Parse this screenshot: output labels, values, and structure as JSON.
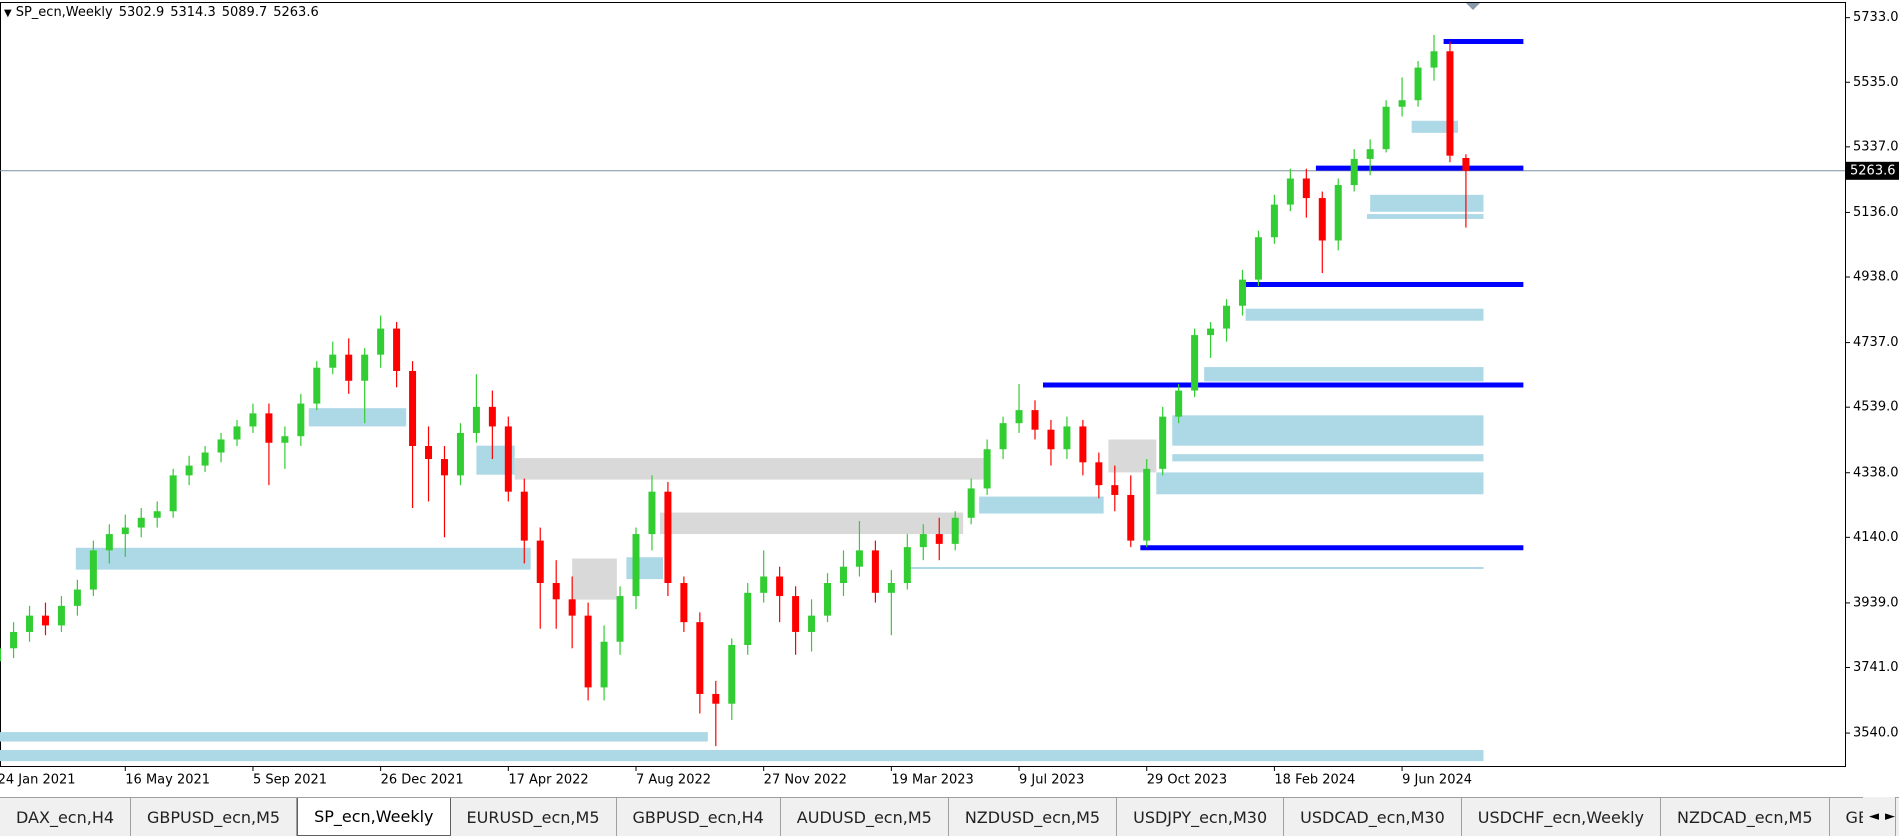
{
  "chart_data": {
    "type": "candlestick",
    "title": "SP_ecn,Weekly",
    "up_color": "#32cd32",
    "down_color": "#ff0000",
    "categories": [
      "24 Jan 2021",
      null,
      null,
      null,
      null,
      null,
      null,
      null,
      "16 May 2021",
      null,
      null,
      null,
      null,
      null,
      null,
      null,
      "5 Sep 2021",
      null,
      null,
      null,
      null,
      null,
      null,
      null,
      "26 Dec 2021",
      null,
      null,
      null,
      null,
      null,
      null,
      null,
      "17 Apr 2022",
      null,
      null,
      null,
      null,
      null,
      null,
      null,
      "7 Aug 2022",
      null,
      null,
      null,
      null,
      null,
      null,
      null,
      "27 Nov 2022",
      null,
      null,
      null,
      null,
      null,
      null,
      null,
      "19 Mar 2023",
      null,
      null,
      null,
      null,
      null,
      null,
      null,
      "9 Jul 2023",
      null,
      null,
      null,
      null,
      null,
      null,
      null,
      "29 Oct 2023",
      null,
      null,
      null,
      null,
      null,
      null,
      null,
      "18 Feb 2024",
      null,
      null,
      null,
      null,
      null,
      null,
      null,
      "9 Jun 2024",
      null,
      null,
      null,
      null
    ],
    "open": [
      3760,
      3800,
      3850,
      3900,
      3870,
      3930,
      3980,
      4100,
      4150,
      4170,
      4200,
      4220,
      4330,
      4360,
      4400,
      4440,
      4480,
      4520,
      4430,
      4450,
      4550,
      4660,
      4700,
      4620,
      4700,
      4780,
      4650,
      4420,
      4380,
      4330,
      4460,
      4540,
      4480,
      4280,
      4130,
      4000,
      3950,
      3900,
      3680,
      3820,
      3960,
      4150,
      4280,
      4000,
      3880,
      3660,
      3630,
      3810,
      3970,
      4020,
      3960,
      3850,
      3900,
      4000,
      4050,
      4100,
      3970,
      4000,
      4110,
      4150,
      4120,
      4200,
      4290,
      4410,
      4490,
      4530,
      4470,
      4410,
      4480,
      4370,
      4300,
      4270,
      4130,
      4350,
      4510,
      4590,
      4760,
      4780,
      4850,
      4930,
      5060,
      5160,
      5240,
      5180,
      5050,
      5220,
      5300,
      5330,
      5460,
      5480,
      5580,
      5630,
      5302.9
    ],
    "high": [
      3840,
      3880,
      3930,
      3940,
      3960,
      4010,
      4130,
      4180,
      4210,
      4230,
      4250,
      4350,
      4390,
      4420,
      4460,
      4500,
      4550,
      4550,
      4480,
      4580,
      4680,
      4740,
      4750,
      4720,
      4820,
      4800,
      4680,
      4480,
      4420,
      4490,
      4640,
      4590,
      4510,
      4320,
      4170,
      4070,
      4020,
      3940,
      3870,
      3990,
      4170,
      4330,
      4310,
      4020,
      3910,
      3700,
      3830,
      4000,
      4100,
      4050,
      3990,
      3950,
      4030,
      4100,
      4190,
      4130,
      4040,
      4150,
      4180,
      4200,
      4220,
      4320,
      4440,
      4510,
      4610,
      4560,
      4500,
      4510,
      4500,
      4400,
      4360,
      4330,
      4380,
      4540,
      4610,
      4780,
      4800,
      4870,
      4960,
      5080,
      5190,
      5270,
      5270,
      5200,
      5240,
      5330,
      5360,
      5480,
      5550,
      5600,
      5680,
      5660,
      5314.3
    ],
    "low": [
      3720,
      3770,
      3820,
      3840,
      3850,
      3900,
      3960,
      4060,
      4080,
      4140,
      4170,
      4200,
      4300,
      4340,
      4370,
      4420,
      4460,
      4300,
      4350,
      4420,
      4530,
      4640,
      4580,
      4490,
      4660,
      4600,
      4230,
      4250,
      4140,
      4300,
      4430,
      4380,
      4250,
      4060,
      3860,
      3860,
      3800,
      3640,
      3640,
      3780,
      3920,
      4100,
      3960,
      3850,
      3600,
      3500,
      3580,
      3780,
      3940,
      3880,
      3780,
      3790,
      3880,
      3960,
      4020,
      3940,
      3840,
      3980,
      4070,
      4070,
      4100,
      4180,
      4270,
      4380,
      4460,
      4440,
      4360,
      4380,
      4330,
      4260,
      4220,
      4110,
      4110,
      4330,
      4490,
      4570,
      4690,
      4740,
      4820,
      4910,
      5040,
      5140,
      5120,
      4950,
      5020,
      5200,
      5250,
      5320,
      5430,
      5460,
      5540,
      5290,
      5089.7
    ],
    "close": [
      3800,
      3850,
      3900,
      3870,
      3930,
      3980,
      4100,
      4150,
      4170,
      4200,
      4220,
      4330,
      4360,
      4400,
      4440,
      4480,
      4520,
      4430,
      4450,
      4550,
      4660,
      4700,
      4620,
      4700,
      4780,
      4650,
      4420,
      4380,
      4330,
      4460,
      4540,
      4480,
      4280,
      4130,
      4000,
      3950,
      3900,
      3680,
      3820,
      3960,
      4150,
      4280,
      4000,
      3880,
      3660,
      3630,
      3810,
      3970,
      4020,
      3960,
      3850,
      3900,
      4000,
      4050,
      4100,
      3970,
      4000,
      4110,
      4150,
      4120,
      4200,
      4290,
      4410,
      4490,
      4530,
      4470,
      4410,
      4480,
      4370,
      4300,
      4270,
      4130,
      4350,
      4510,
      4590,
      4760,
      4780,
      4850,
      4930,
      5060,
      5160,
      5240,
      5180,
      5050,
      5220,
      5300,
      5330,
      5460,
      5480,
      5580,
      5630,
      5310,
      5263.6
    ],
    "ylim": [
      3436,
      5778
    ],
    "yticks": [
      {
        "value": 3540,
        "label": "3540.0"
      },
      {
        "value": 3741,
        "label": "3741.0"
      },
      {
        "value": 3939,
        "label": "3939.0"
      },
      {
        "value": 4140,
        "label": "4140.0"
      },
      {
        "value": 4338,
        "label": "4338.0"
      },
      {
        "value": 4539,
        "label": "4539.0"
      },
      {
        "value": 4737,
        "label": "4737.0"
      },
      {
        "value": 4938,
        "label": "4938.0"
      },
      {
        "value": 5136,
        "label": "5136.0"
      },
      {
        "value": 5337,
        "label": "5337.0"
      },
      {
        "value": 5535,
        "label": "5535.0"
      },
      {
        "value": 5733,
        "label": "5733.0"
      }
    ],
    "grid": false,
    "zones": [
      {
        "low": 5138,
        "high": 5190,
        "from": 86,
        "to": 93.1,
        "color": "#add8e6"
      },
      {
        "low": 5116,
        "high": 5131,
        "from": 85.8,
        "to": 93.1,
        "color": "#add8e6"
      },
      {
        "low": 5380,
        "high": 5417,
        "from": 88.6,
        "to": 91.5,
        "color": "#add8e6"
      },
      {
        "low": 4804,
        "high": 4841,
        "from": 78.2,
        "to": 93.1,
        "color": "#add8e6"
      },
      {
        "low": 4618,
        "high": 4662,
        "from": 75.6,
        "to": 93.1,
        "color": "#add8e6"
      },
      {
        "low": 4421,
        "high": 4514,
        "from": 73.6,
        "to": 93.1,
        "color": "#add8e6"
      },
      {
        "low": 4373,
        "high": 4395,
        "from": 73.6,
        "to": 93.1,
        "color": "#add8e6"
      },
      {
        "low": 4272,
        "high": 4339,
        "from": 72.6,
        "to": 93.1,
        "color": "#add8e6"
      },
      {
        "low": 4213,
        "high": 4265,
        "from": 61.5,
        "to": 69.3,
        "color": "#add8e6"
      },
      {
        "low": 4041,
        "high": 4108,
        "from": 4.9,
        "to": 33.4,
        "color": "#add8e6"
      },
      {
        "low": 3514,
        "high": 3543,
        "from": 0,
        "to": 44.5,
        "color": "#add8e6"
      },
      {
        "low": 3454,
        "high": 3488,
        "from": 0,
        "to": 93.1,
        "color": "#add8e6"
      },
      {
        "low": 4480,
        "high": 4536,
        "from": 19.5,
        "to": 25.6,
        "color": "#add8e6"
      },
      {
        "low": 4332,
        "high": 4421,
        "from": 30,
        "to": 32.4,
        "color": "#add8e6"
      },
      {
        "low": 4012,
        "high": 4079,
        "from": 39.4,
        "to": 41.7,
        "color": "#add8e6"
      },
      {
        "low": 4043,
        "high": 4049,
        "from": 57,
        "to": 93.1,
        "color": "#add8e6"
      },
      {
        "low": 4317,
        "high": 4383,
        "from": 32.4,
        "to": 62,
        "color": "#d9d9d9"
      },
      {
        "low": 4150,
        "high": 4216,
        "from": 41.5,
        "to": 60.5,
        "color": "#d9d9d9"
      },
      {
        "low": 3949,
        "high": 4075,
        "from": 36,
        "to": 38.8,
        "color": "#d9d9d9"
      },
      {
        "low": 4339,
        "high": 4440,
        "from": 69.6,
        "to": 72.6,
        "color": "#d9d9d9"
      }
    ],
    "levels": [
      {
        "price": 5660,
        "from": 90.6,
        "to": 95.6,
        "color": "#0000ff"
      },
      {
        "price": 5272,
        "from": 82.6,
        "to": 95.6,
        "color": "#0000ff"
      },
      {
        "price": 4915,
        "from": 78.2,
        "to": 95.6,
        "color": "#0000ff"
      },
      {
        "price": 4607,
        "from": 65.5,
        "to": 95.6,
        "color": "#0000ff"
      },
      {
        "price": 4108,
        "from": 71.6,
        "to": 95.6,
        "color": "#0000ff"
      }
    ]
  },
  "tabs": [
    "DAX_ecn,H4",
    "GBPUSD_ecn,M5",
    "SP_ecn,Weekly",
    "EURUSD_ecn,M5",
    "GBPUSD_ecn,H4",
    "AUDUSD_ecn,M5",
    "NZDUSD_ecn,M5",
    "USDJPY_ecn,M30",
    "USDCAD_ecn,M30",
    "USDCHF_ecn,Weekly",
    "NZDCAD_ecn,M5",
    "GBP"
  ],
  "active_tab": 2
}
